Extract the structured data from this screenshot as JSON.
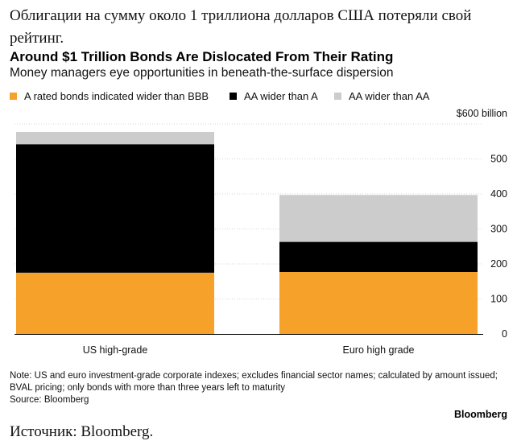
{
  "headline": "Облигации на сумму около 1 триллиона долларов США потеряли свой рейтинг.",
  "chart_data": {
    "type": "bar",
    "stacked": true,
    "title": "Around $1 Trillion Bonds Are Dislocated From Their Rating",
    "subtitle": "Money managers eye opportunities in beneath-the-surface dispersion",
    "categories": [
      "US high-grade",
      "Euro high grade"
    ],
    "series": [
      {
        "name": "A rated bonds indicated wider than BBB",
        "color": "#f5a12a",
        "values": [
          175,
          177
        ]
      },
      {
        "name": "AA wider than A",
        "color": "#000000",
        "values": [
          367,
          86
        ]
      },
      {
        "name": "AA wider than AA",
        "color": "#cccccc",
        "values": [
          35,
          134
        ]
      }
    ],
    "ylim": [
      0,
      600
    ],
    "yticks": [
      {
        "value": 600,
        "label": "$600 billion"
      },
      {
        "value": 500,
        "label": "500"
      },
      {
        "value": 400,
        "label": "400"
      },
      {
        "value": 300,
        "label": "300"
      },
      {
        "value": 200,
        "label": "200"
      },
      {
        "value": 100,
        "label": "100"
      },
      {
        "value": 0,
        "label": "0"
      }
    ],
    "grid": true,
    "legend_position": "top-left"
  },
  "note": "Note: US and euro investment-grade corporate indexes; excludes financial sector names; calculated by amount issued; BVAL pricing; only bonds with more than three years left to maturity",
  "source": "Source: Bloomberg",
  "brand": "Bloomberg",
  "footer_source": "Источник: Bloomberg."
}
